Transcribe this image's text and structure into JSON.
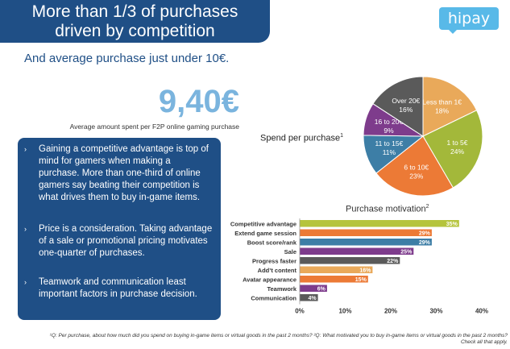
{
  "header": {
    "title_line1": "More than 1/3 of purchases",
    "title_line2": "driven by competition",
    "logo": "hipay",
    "subtitle": "And average purchase just under 10€."
  },
  "highlight": {
    "value": "9,40€",
    "caption": "Average amount spent per F2P online gaming purchase"
  },
  "bullets": [
    "Gaining a competitive advantage is top of mind for gamers when making a purchase. More than one-third of online gamers say beating their competition is what drives them to buy in-game items.",
    "Price is a consideration. Taking advantage of a sale or promotional pricing motivates one-quarter of purchases.",
    "Teamwork and communication least important factors in purchase decision."
  ],
  "footnote": "¹Q: Per purchase, about how much did you spend on buying in-game items or virtual goods in the past 2 months? ²Q: What motivated you to buy in-game items or virtual goods in the past 2 months? Check all that apply.",
  "colors": {
    "banner": "#1f4f86",
    "accent_light_blue": "#7ab4de",
    "logo": "#58b9e8"
  },
  "chart_data": [
    {
      "type": "pie",
      "title": "Spend per purchase",
      "title_marker": "1",
      "slices": [
        {
          "label": "Less than 1€",
          "value": 18,
          "value_label": "18%",
          "color": "#e9a95a"
        },
        {
          "label": "1 to 5€",
          "value": 24,
          "value_label": "24%",
          "color": "#a3b83a"
        },
        {
          "label": "6 to 10€",
          "value": 23,
          "value_label": "23%",
          "color": "#ec7a36"
        },
        {
          "label": "11 to 15€",
          "value": 11,
          "value_label": "11%",
          "color": "#3d7ea6"
        },
        {
          "label": "16 to 20€",
          "value": 9,
          "value_label": "9%",
          "color": "#7e3c8c"
        },
        {
          "label": "Over 20€",
          "value": 16,
          "value_label": "16%",
          "color": "#5a5a5a"
        }
      ]
    },
    {
      "type": "bar",
      "orientation": "horizontal",
      "title": "Purchase motivation",
      "title_marker": "2",
      "categories": [
        "Competitive advantage",
        "Extend game session",
        "Boost score/rank",
        "Sale",
        "Progress faster",
        "Add’t content",
        "Avatar appearance",
        "Teamwork",
        "Communication"
      ],
      "values": [
        35,
        29,
        29,
        25,
        22,
        16,
        15,
        6,
        4
      ],
      "value_labels": [
        "35%",
        "29%",
        "29%",
        "25%",
        "22%",
        "16%",
        "15%",
        "6%",
        "4%"
      ],
      "colors": [
        "#b5c43c",
        "#ec7a36",
        "#3d7ea6",
        "#7e3c8c",
        "#5a5a5a",
        "#e9a95a",
        "#ec7a36",
        "#7e3c8c",
        "#5a5a5a"
      ],
      "xlim": [
        0,
        40
      ],
      "xticks": [
        "0%",
        "10%",
        "20%",
        "30%",
        "40%"
      ],
      "grid": false
    }
  ]
}
